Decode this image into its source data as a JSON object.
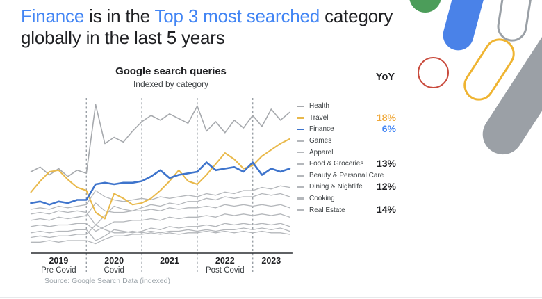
{
  "slide": {
    "title": {
      "segments": [
        {
          "text": "Finance",
          "accent": true
        },
        {
          "text": " is in the ",
          "accent": false
        },
        {
          "text": "Top 3 most searched",
          "accent": true
        },
        {
          "text": " category globally in the last 5 years",
          "accent": false
        }
      ],
      "accent_color": "#4285F4",
      "text_color": "#202124"
    },
    "yoy_header": "YoY",
    "source": "Source: Google Search Data (indexed)"
  },
  "chart_data": {
    "type": "line",
    "title": "Google search queries",
    "subtitle": "Indexed by category",
    "legend_position": "right",
    "grid": "dashed vertical year separators",
    "y_axis": {
      "visible": false,
      "note": "search interest index, no numeric scale shown",
      "ylim": [
        0,
        100
      ]
    },
    "x_axis": {
      "range": "Jan 2019 - Sep 2023",
      "points_per_year": 6,
      "labels": [
        {
          "year": "2019",
          "caption": "Pre Covid"
        },
        {
          "year": "2020",
          "caption": "Covid"
        },
        {
          "year": "2021",
          "caption": ""
        },
        {
          "year": "2022",
          "caption": "Post Covid"
        },
        {
          "year": "2023",
          "caption": ""
        }
      ]
    },
    "series": [
      {
        "name": "Health",
        "color": "#A6A9AD",
        "line_width": 1.6,
        "yoy": null,
        "yoy_color": null,
        "values": [
          52,
          55,
          50,
          54,
          49,
          53,
          51,
          95,
          70,
          74,
          71,
          78,
          84,
          88,
          85,
          89,
          86,
          83,
          94,
          78,
          84,
          77,
          85,
          80,
          88,
          81,
          92,
          85,
          90
        ]
      },
      {
        "name": "Travel",
        "color": "#E9B94B",
        "line_width": 2.0,
        "yoy": "18%",
        "yoy_color": "#F0A93B",
        "values": [
          39,
          46,
          52,
          53,
          47,
          42,
          40,
          26,
          22,
          38,
          35,
          31,
          32,
          35,
          40,
          46,
          53,
          46,
          44,
          50,
          57,
          64,
          60,
          54,
          56,
          62,
          66,
          70,
          73
        ]
      },
      {
        "name": "Finance",
        "color": "#3E74CC",
        "line_width": 2.6,
        "yoy": "6%",
        "yoy_color": "#4285F4",
        "values": [
          32,
          33,
          31,
          33,
          32,
          34,
          34,
          44,
          45,
          44,
          45,
          45,
          46,
          49,
          53,
          48,
          50,
          51,
          52,
          58,
          53,
          54,
          55,
          52,
          58,
          50,
          54,
          52,
          54
        ]
      },
      {
        "name": "Games",
        "color": "#B4B7BB",
        "line_width": 1.3,
        "yoy": null,
        "yoy_color": null,
        "values": [
          28,
          29,
          28,
          30,
          29,
          30,
          31,
          40,
          36,
          34,
          33,
          34,
          35,
          34,
          36,
          35,
          36,
          37,
          36,
          38,
          37,
          39,
          38,
          40,
          40,
          42,
          41,
          43,
          42
        ]
      },
      {
        "name": "Apparel",
        "color": "#B4B7BB",
        "line_width": 1.3,
        "yoy": null,
        "yoy_color": null,
        "values": [
          25,
          26,
          25,
          27,
          26,
          27,
          26,
          18,
          24,
          30,
          28,
          27,
          29,
          31,
          30,
          32,
          31,
          33,
          33,
          35,
          34,
          36,
          35,
          36,
          36,
          38,
          37,
          38,
          36
        ]
      },
      {
        "name": "Food & Groceries",
        "color": "#B4B7BB",
        "line_width": 1.3,
        "yoy": "13%",
        "yoy_color": "#202124",
        "values": [
          21,
          22,
          21,
          23,
          22,
          23,
          24,
          32,
          27,
          26,
          26,
          27,
          27,
          28,
          27,
          29,
          28,
          29,
          29,
          30,
          29,
          31,
          30,
          31,
          30,
          31,
          30,
          31,
          29
        ]
      },
      {
        "name": "Beauty & Personal Care",
        "color": "#B4B7BB",
        "line_width": 1.3,
        "yoy": null,
        "yoy_color": null,
        "values": [
          17,
          18,
          17,
          18,
          18,
          19,
          19,
          14,
          17,
          20,
          20,
          21,
          21,
          22,
          21,
          23,
          22,
          23,
          23,
          24,
          23,
          25,
          24,
          25,
          24,
          25,
          24,
          25,
          23
        ]
      },
      {
        "name": "Dining & Nightlife",
        "color": "#B4B7BB",
        "line_width": 1.3,
        "yoy": "12%",
        "yoy_color": "#202124",
        "values": [
          13,
          14,
          13,
          14,
          14,
          15,
          15,
          8,
          11,
          15,
          14,
          13,
          14,
          16,
          15,
          17,
          16,
          17,
          17,
          18,
          17,
          19,
          18,
          19,
          18,
          19,
          18,
          19,
          17
        ]
      },
      {
        "name": "Cooking",
        "color": "#B4B7BB",
        "line_width": 1.3,
        "yoy": null,
        "yoy_color": null,
        "values": [
          10,
          11,
          10,
          11,
          11,
          12,
          12,
          18,
          15,
          13,
          13,
          14,
          13,
          14,
          13,
          14,
          14,
          15,
          14,
          15,
          14,
          15,
          15,
          16,
          15,
          16,
          15,
          16,
          14
        ]
      },
      {
        "name": "Real Estate",
        "color": "#B4B7BB",
        "line_width": 1.3,
        "yoy": "14%",
        "yoy_color": "#202124",
        "values": [
          7,
          7,
          8,
          7,
          8,
          8,
          8,
          6,
          9,
          11,
          11,
          12,
          12,
          13,
          12,
          13,
          12,
          13,
          13,
          14,
          13,
          14,
          13,
          14,
          13,
          14,
          13,
          13,
          12
        ]
      }
    ]
  }
}
